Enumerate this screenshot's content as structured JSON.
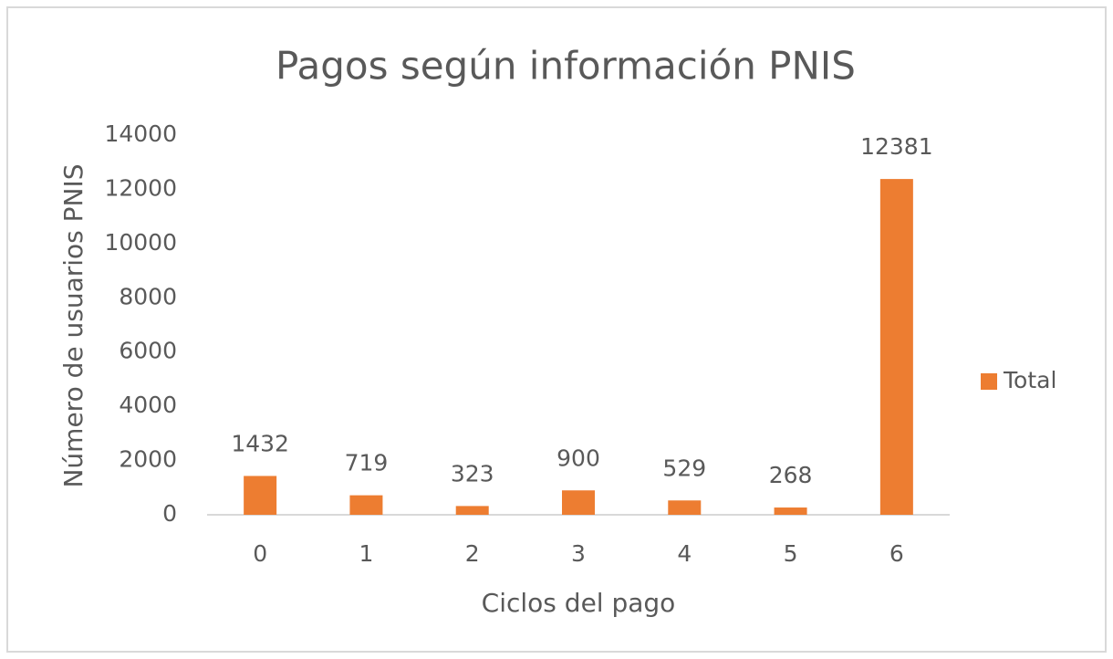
{
  "chart_data": {
    "type": "bar",
    "title": "Pagos según información PNIS",
    "x_label": "Ciclos del pago",
    "y_label": "Número de usuarios PNIS",
    "categories": [
      "0",
      "1",
      "2",
      "3",
      "4",
      "5",
      "6"
    ],
    "series": [
      {
        "name": "Total",
        "color": "#ed7d31",
        "values": [
          1432,
          719,
          323,
          900,
          529,
          268,
          12381
        ]
      }
    ],
    "ylim": [
      0,
      14000
    ],
    "yticks": [
      0,
      2000,
      4000,
      6000,
      8000,
      10000,
      12000,
      14000
    ],
    "grid": false,
    "legend": "right",
    "data_labels": true
  }
}
